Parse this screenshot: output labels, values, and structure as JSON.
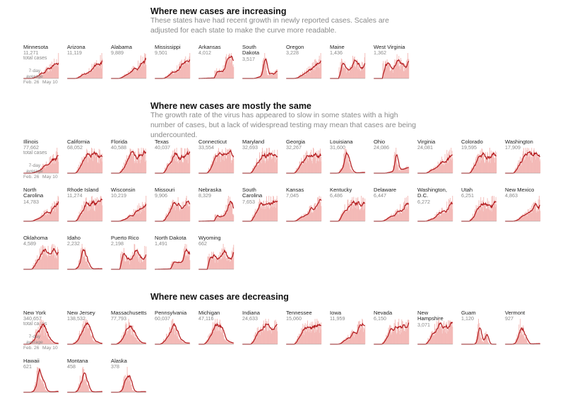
{
  "colors": {
    "fill": "#f3b9b6",
    "line": "#b3191c",
    "base": "#999999"
  },
  "labels": {
    "total_cases": "total cases",
    "avg_line1": "7-day",
    "avg_line2": "average",
    "x_start": "Feb. 26",
    "x_end": "May 10"
  },
  "sections": [
    {
      "title": "Where new cases are increasing",
      "desc": "These states have had recent growth in newly reported cases. Scales are adjusted for each state to make the curve more readable."
    },
    {
      "title": "Where new cases are mostly the same",
      "desc": "The growth rate of the virus has appeared to slow in some states with a high number of cases, but a lack of widespread testing may mean that cases are being undercounted."
    },
    {
      "title": "Where new cases are decreasing",
      "desc": ""
    }
  ],
  "chart_data": {
    "type": "area",
    "x_range": [
      "Feb. 26",
      "May 10"
    ],
    "series_description_note": "",
    "states": [
      {
        "section": 0,
        "name": "Minnesota",
        "cases": "11,271",
        "shape": "rise"
      },
      {
        "section": 0,
        "name": "Arizona",
        "cases": "11,119",
        "shape": "rise"
      },
      {
        "section": 0,
        "name": "Alabama",
        "cases": "9,889",
        "shape": "rise"
      },
      {
        "section": 0,
        "name": "Mississippi",
        "cases": "9,501",
        "shape": "rise"
      },
      {
        "section": 0,
        "name": "Arkansas",
        "cases": "4,012",
        "shape": "late"
      },
      {
        "section": 0,
        "name": "South\nDakota",
        "cases": "3,517",
        "shape": "spike"
      },
      {
        "section": 0,
        "name": "Oregon",
        "cases": "3,228",
        "shape": "rise"
      },
      {
        "section": 0,
        "name": "Maine",
        "cases": "1,436",
        "shape": "wave"
      },
      {
        "section": 0,
        "name": "West Virginia",
        "cases": "1,362",
        "shape": "wave"
      },
      {
        "section": 1,
        "name": "Illinois",
        "cases": "77,662",
        "shape": "rise"
      },
      {
        "section": 1,
        "name": "California",
        "cases": "68,052",
        "shape": "plateau"
      },
      {
        "section": 1,
        "name": "Florida",
        "cases": "40,588",
        "shape": "plateau"
      },
      {
        "section": 1,
        "name": "Texas",
        "cases": "40,037",
        "shape": "plateau"
      },
      {
        "section": 1,
        "name": "Connecticut",
        "cases": "33,554",
        "shape": "plateau"
      },
      {
        "section": 1,
        "name": "Maryland",
        "cases": "32,693",
        "shape": "plateau"
      },
      {
        "section": 1,
        "name": "Georgia",
        "cases": "32,267",
        "shape": "plateau"
      },
      {
        "section": 1,
        "name": "Louisiana",
        "cases": "31,600",
        "shape": "peak"
      },
      {
        "section": 1,
        "name": "Ohio",
        "cases": "24,086",
        "shape": "spike"
      },
      {
        "section": 1,
        "name": "Virginia",
        "cases": "24,081",
        "shape": "rise"
      },
      {
        "section": 1,
        "name": "Colorado",
        "cases": "19,595",
        "shape": "plateau"
      },
      {
        "section": 1,
        "name": "Washington",
        "cases": "17,909",
        "shape": "plateau"
      },
      {
        "section": 1,
        "name": "North\nCarolina",
        "cases": "14,783",
        "shape": "rise"
      },
      {
        "section": 1,
        "name": "Rhode Island",
        "cases": "11,274",
        "shape": "plateau"
      },
      {
        "section": 1,
        "name": "Wisconsin",
        "cases": "10,219",
        "shape": "rise"
      },
      {
        "section": 1,
        "name": "Missouri",
        "cases": "9,906",
        "shape": "plateau"
      },
      {
        "section": 1,
        "name": "Nebraska",
        "cases": "8,329",
        "shape": "late"
      },
      {
        "section": 1,
        "name": "South\nCarolina",
        "cases": "7,653",
        "shape": "plateau"
      },
      {
        "section": 1,
        "name": "Kansas",
        "cases": "7,045",
        "shape": "rise"
      },
      {
        "section": 1,
        "name": "Kentucky",
        "cases": "6,486",
        "shape": "plateau"
      },
      {
        "section": 1,
        "name": "Delaware",
        "cases": "6,447",
        "shape": "rise"
      },
      {
        "section": 1,
        "name": "Washington,\nD.C.",
        "cases": "6,272",
        "shape": "rise"
      },
      {
        "section": 1,
        "name": "Utah",
        "cases": "6,251",
        "shape": "plateau"
      },
      {
        "section": 1,
        "name": "New Mexico",
        "cases": "4,863",
        "shape": "rise"
      },
      {
        "section": 1,
        "name": "Oklahoma",
        "cases": "4,589",
        "shape": "plateau"
      },
      {
        "section": 1,
        "name": "Idaho",
        "cases": "2,232",
        "shape": "peak"
      },
      {
        "section": 1,
        "name": "Puerto Rico",
        "cases": "2,198",
        "shape": "wave"
      },
      {
        "section": 1,
        "name": "North Dakota",
        "cases": "1,491",
        "shape": "late"
      },
      {
        "section": 1,
        "name": "Wyoming",
        "cases": "662",
        "shape": "wave"
      },
      {
        "section": 2,
        "name": "New York",
        "cases": "340,657",
        "shape": "decline"
      },
      {
        "section": 2,
        "name": "New Jersey",
        "cases": "138,532",
        "shape": "decline"
      },
      {
        "section": 2,
        "name": "Massachusetts",
        "cases": "77,793",
        "shape": "decline"
      },
      {
        "section": 2,
        "name": "Pennsylvania",
        "cases": "60,037",
        "shape": "decline"
      },
      {
        "section": 2,
        "name": "Michigan",
        "cases": "47,116",
        "shape": "decline"
      },
      {
        "section": 2,
        "name": "Indiana",
        "cases": "24,633",
        "shape": "plateau"
      },
      {
        "section": 2,
        "name": "Tennessee",
        "cases": "15,060",
        "shape": "plateau"
      },
      {
        "section": 2,
        "name": "Iowa",
        "cases": "11,959",
        "shape": "rise"
      },
      {
        "section": 2,
        "name": "Nevada",
        "cases": "6,150",
        "shape": "plateau"
      },
      {
        "section": 2,
        "name": "New\nHampshire",
        "cases": "3,071",
        "shape": "plateau"
      },
      {
        "section": 2,
        "name": "Guam",
        "cases": "1,120",
        "shape": "guam"
      },
      {
        "section": 2,
        "name": "Vermont",
        "cases": "927",
        "shape": "peak"
      },
      {
        "section": 2,
        "name": "Hawaii",
        "cases": "621",
        "shape": "peak"
      },
      {
        "section": 2,
        "name": "Montana",
        "cases": "458",
        "shape": "peak"
      },
      {
        "section": 2,
        "name": "Alaska",
        "cases": "378",
        "shape": "peak"
      }
    ]
  }
}
